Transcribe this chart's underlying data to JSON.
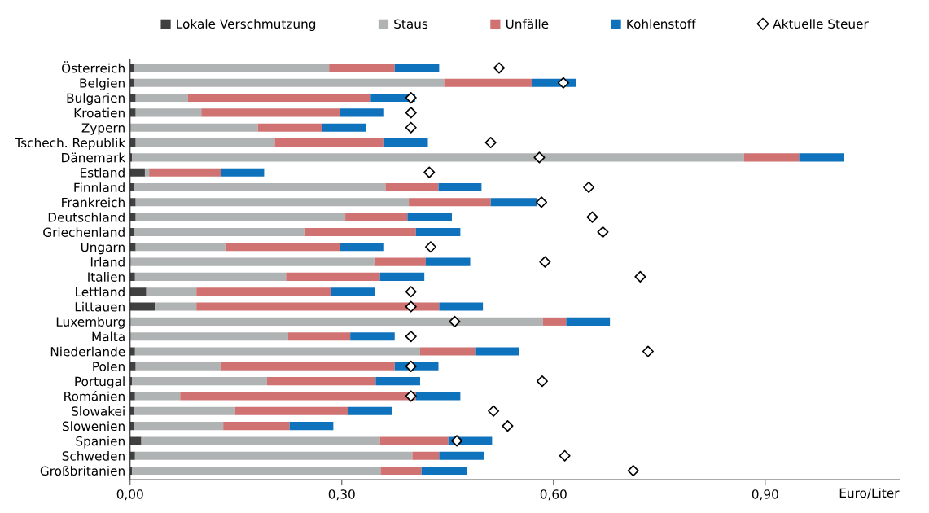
{
  "chart_data": {
    "type": "bar",
    "orientation": "horizontal",
    "stacked": true,
    "xlabel": "Euro/Liter",
    "categories": [
      "Österreich",
      "Belgien",
      "Bulgarien",
      "Kroatien",
      "Zypern",
      "Tschech. Republik",
      "Dänemark",
      "Estland",
      "Finnland",
      "Frankreich",
      "Deutschland",
      "Griechenland",
      "Ungarn",
      "Irland",
      "Italien",
      "Lettland",
      "Littauen",
      "Luxemburg",
      "Malta",
      "Niederlande",
      "Polen",
      "Portugal",
      "Románien",
      "Slowakei",
      "Slowenien",
      "Spanien",
      "Schweden",
      "Großbritanien"
    ],
    "series": [
      {
        "name": "Lokale Verschmutzung",
        "color": "#404040",
        "values": [
          0.006,
          0.006,
          0.008,
          0.008,
          0,
          0.008,
          0.003,
          0.021,
          0.006,
          0.008,
          0.008,
          0.006,
          0.008,
          0,
          0.007,
          0.023,
          0.035,
          0,
          0,
          0.007,
          0.008,
          0.003,
          0.007,
          0.006,
          0.006,
          0.016,
          0.007,
          0.003
        ]
      },
      {
        "name": "Staus",
        "color": "#b0b3b3",
        "values": [
          0.276,
          0.439,
          0.074,
          0.093,
          0.181,
          0.197,
          0.867,
          0.006,
          0.356,
          0.387,
          0.297,
          0.241,
          0.127,
          0.346,
          0.214,
          0.071,
          0.059,
          0.585,
          0.224,
          0.404,
          0.12,
          0.191,
          0.064,
          0.143,
          0.126,
          0.338,
          0.393,
          0.352
        ]
      },
      {
        "name": "Unfälle",
        "color": "#d07272",
        "values": [
          0.093,
          0.124,
          0.259,
          0.197,
          0.091,
          0.155,
          0.078,
          0.102,
          0.075,
          0.116,
          0.088,
          0.158,
          0.163,
          0.073,
          0.133,
          0.19,
          0.344,
          0.033,
          0.088,
          0.079,
          0.247,
          0.154,
          0.334,
          0.16,
          0.094,
          0.097,
          0.038,
          0.058
        ]
      },
      {
        "name": "Kohlenstoff",
        "color": "#0f72bd",
        "values": [
          0.063,
          0.063,
          0.063,
          0.062,
          0.062,
          0.062,
          0.063,
          0.061,
          0.061,
          0.066,
          0.063,
          0.063,
          0.062,
          0.063,
          0.063,
          0.063,
          0.062,
          0.062,
          0.063,
          0.061,
          0.062,
          0.063,
          0.063,
          0.062,
          0.062,
          0.062,
          0.063,
          0.064
        ]
      },
      {
        "name": "Aktuelle Steuer",
        "type": "scatter",
        "marker": "diamond",
        "color": "#000000",
        "values": [
          0.523,
          0.614,
          0.398,
          0.398,
          0.398,
          0.511,
          0.58,
          0.424,
          0.65,
          0.583,
          0.655,
          0.67,
          0.426,
          0.588,
          0.723,
          0.398,
          0.398,
          0.46,
          0.398,
          0.734,
          0.398,
          0.584,
          0.398,
          0.515,
          0.535,
          0.463,
          0.616,
          0.713
        ]
      }
    ],
    "xlim": [
      0,
      1.09
    ],
    "xticks": [
      {
        "value": 0,
        "label": "0,00"
      },
      {
        "value": 0.3,
        "label": "0,30"
      },
      {
        "value": 0.6,
        "label": "0,60"
      },
      {
        "value": 0.9,
        "label": "0,90"
      }
    ],
    "legend": "top",
    "grid": false
  }
}
